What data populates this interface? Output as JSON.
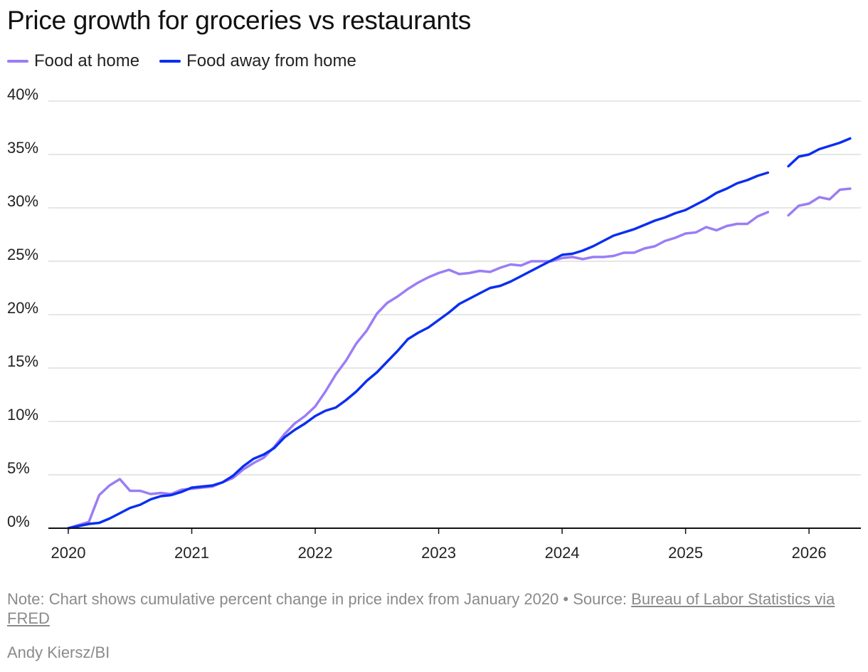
{
  "chart_data": {
    "type": "line",
    "title": "Price growth for groceries vs restaurants",
    "xlabel": "",
    "ylabel": "",
    "x_ticks": [
      "2020",
      "2021",
      "2022",
      "2023",
      "2024",
      "2025",
      "2026"
    ],
    "y_ticks": [
      "0%",
      "5%",
      "10%",
      "15%",
      "20%",
      "25%",
      "30%",
      "35%",
      "40%"
    ],
    "xlim": [
      2020.0,
      2026.42
    ],
    "ylim": [
      0,
      40
    ],
    "grid": "horizontal",
    "legend": "top-left",
    "series": [
      {
        "name": "Food at home",
        "color": "#9b7df5",
        "segments": [
          [
            [
              2020.0,
              0
            ],
            [
              2020.083,
              0.3
            ],
            [
              2020.167,
              0.6
            ],
            [
              2020.25,
              3.1
            ],
            [
              2020.333,
              4.0
            ],
            [
              2020.417,
              4.6
            ],
            [
              2020.5,
              3.5
            ],
            [
              2020.583,
              3.5
            ],
            [
              2020.667,
              3.2
            ],
            [
              2020.75,
              3.3
            ],
            [
              2020.833,
              3.2
            ],
            [
              2020.917,
              3.6
            ],
            [
              2021.0,
              3.7
            ],
            [
              2021.083,
              3.8
            ],
            [
              2021.167,
              3.9
            ],
            [
              2021.25,
              4.3
            ],
            [
              2021.333,
              4.7
            ],
            [
              2021.417,
              5.5
            ],
            [
              2021.5,
              6.1
            ],
            [
              2021.583,
              6.6
            ],
            [
              2021.667,
              7.6
            ],
            [
              2021.75,
              8.8
            ],
            [
              2021.833,
              9.8
            ],
            [
              2021.917,
              10.5
            ],
            [
              2022.0,
              11.4
            ],
            [
              2022.083,
              12.8
            ],
            [
              2022.167,
              14.4
            ],
            [
              2022.25,
              15.7
            ],
            [
              2022.333,
              17.3
            ],
            [
              2022.417,
              18.5
            ],
            [
              2022.5,
              20.1
            ],
            [
              2022.583,
              21.1
            ],
            [
              2022.667,
              21.7
            ],
            [
              2022.75,
              22.4
            ],
            [
              2022.833,
              23.0
            ],
            [
              2022.917,
              23.5
            ],
            [
              2023.0,
              23.9
            ],
            [
              2023.083,
              24.2
            ],
            [
              2023.167,
              23.8
            ],
            [
              2023.25,
              23.9
            ],
            [
              2023.333,
              24.1
            ],
            [
              2023.417,
              24.0
            ],
            [
              2023.5,
              24.4
            ],
            [
              2023.583,
              24.7
            ],
            [
              2023.667,
              24.6
            ],
            [
              2023.75,
              25.0
            ],
            [
              2023.833,
              25.0
            ],
            [
              2023.917,
              25.0
            ],
            [
              2024.0,
              25.3
            ],
            [
              2024.083,
              25.4
            ],
            [
              2024.167,
              25.2
            ],
            [
              2024.25,
              25.4
            ],
            [
              2024.333,
              25.4
            ],
            [
              2024.417,
              25.5
            ],
            [
              2024.5,
              25.8
            ],
            [
              2024.583,
              25.8
            ],
            [
              2024.667,
              26.2
            ],
            [
              2024.75,
              26.4
            ],
            [
              2024.833,
              26.9
            ],
            [
              2024.917,
              27.2
            ],
            [
              2025.0,
              27.6
            ],
            [
              2025.083,
              27.7
            ],
            [
              2025.167,
              28.2
            ],
            [
              2025.25,
              27.9
            ],
            [
              2025.333,
              28.3
            ],
            [
              2025.417,
              28.5
            ],
            [
              2025.5,
              28.5
            ],
            [
              2025.583,
              29.2
            ],
            [
              2025.667,
              29.6
            ]
          ],
          [
            [
              2025.833,
              29.3
            ],
            [
              2025.917,
              30.2
            ],
            [
              2026.0,
              30.4
            ],
            [
              2026.083,
              31.0
            ],
            [
              2026.167,
              30.8
            ],
            [
              2026.25,
              31.7
            ],
            [
              2026.333,
              31.8
            ]
          ]
        ]
      },
      {
        "name": "Food away from home",
        "color": "#0a2ef0",
        "segments": [
          [
            [
              2020.0,
              0
            ],
            [
              2020.083,
              0.2
            ],
            [
              2020.167,
              0.4
            ],
            [
              2020.25,
              0.5
            ],
            [
              2020.333,
              0.9
            ],
            [
              2020.417,
              1.4
            ],
            [
              2020.5,
              1.9
            ],
            [
              2020.583,
              2.2
            ],
            [
              2020.667,
              2.7
            ],
            [
              2020.75,
              3.0
            ],
            [
              2020.833,
              3.1
            ],
            [
              2020.917,
              3.4
            ],
            [
              2021.0,
              3.8
            ],
            [
              2021.083,
              3.9
            ],
            [
              2021.167,
              4.0
            ],
            [
              2021.25,
              4.3
            ],
            [
              2021.333,
              4.9
            ],
            [
              2021.417,
              5.8
            ],
            [
              2021.5,
              6.5
            ],
            [
              2021.583,
              6.9
            ],
            [
              2021.667,
              7.5
            ],
            [
              2021.75,
              8.5
            ],
            [
              2021.833,
              9.2
            ],
            [
              2021.917,
              9.8
            ],
            [
              2022.0,
              10.5
            ],
            [
              2022.083,
              11.0
            ],
            [
              2022.167,
              11.3
            ],
            [
              2022.25,
              12.0
            ],
            [
              2022.333,
              12.8
            ],
            [
              2022.417,
              13.8
            ],
            [
              2022.5,
              14.6
            ],
            [
              2022.583,
              15.6
            ],
            [
              2022.667,
              16.6
            ],
            [
              2022.75,
              17.7
            ],
            [
              2022.833,
              18.3
            ],
            [
              2022.917,
              18.8
            ],
            [
              2023.0,
              19.5
            ],
            [
              2023.083,
              20.2
            ],
            [
              2023.167,
              21.0
            ],
            [
              2023.25,
              21.5
            ],
            [
              2023.333,
              22.0
            ],
            [
              2023.417,
              22.5
            ],
            [
              2023.5,
              22.7
            ],
            [
              2023.583,
              23.1
            ],
            [
              2023.667,
              23.6
            ],
            [
              2023.75,
              24.1
            ],
            [
              2023.833,
              24.6
            ],
            [
              2023.917,
              25.1
            ],
            [
              2024.0,
              25.6
            ],
            [
              2024.083,
              25.7
            ],
            [
              2024.167,
              26.0
            ],
            [
              2024.25,
              26.4
            ],
            [
              2024.333,
              26.9
            ],
            [
              2024.417,
              27.4
            ],
            [
              2024.5,
              27.7
            ],
            [
              2024.583,
              28.0
            ],
            [
              2024.667,
              28.4
            ],
            [
              2024.75,
              28.8
            ],
            [
              2024.833,
              29.1
            ],
            [
              2024.917,
              29.5
            ],
            [
              2025.0,
              29.8
            ],
            [
              2025.083,
              30.3
            ],
            [
              2025.167,
              30.8
            ],
            [
              2025.25,
              31.4
            ],
            [
              2025.333,
              31.8
            ],
            [
              2025.417,
              32.3
            ],
            [
              2025.5,
              32.6
            ],
            [
              2025.583,
              33.0
            ],
            [
              2025.667,
              33.3
            ]
          ],
          [
            [
              2025.833,
              33.9
            ],
            [
              2025.917,
              34.8
            ],
            [
              2026.0,
              35.0
            ],
            [
              2026.083,
              35.5
            ],
            [
              2026.167,
              35.8
            ],
            [
              2026.25,
              36.1
            ],
            [
              2026.333,
              36.5
            ]
          ]
        ]
      }
    ]
  },
  "footnote": {
    "note": "Note: Chart shows cumulative percent change in price index from January 2020 • Source: ",
    "source_link": "Bureau of Labor Statistics via FRED"
  },
  "credit": "Andy Kiersz/BI"
}
